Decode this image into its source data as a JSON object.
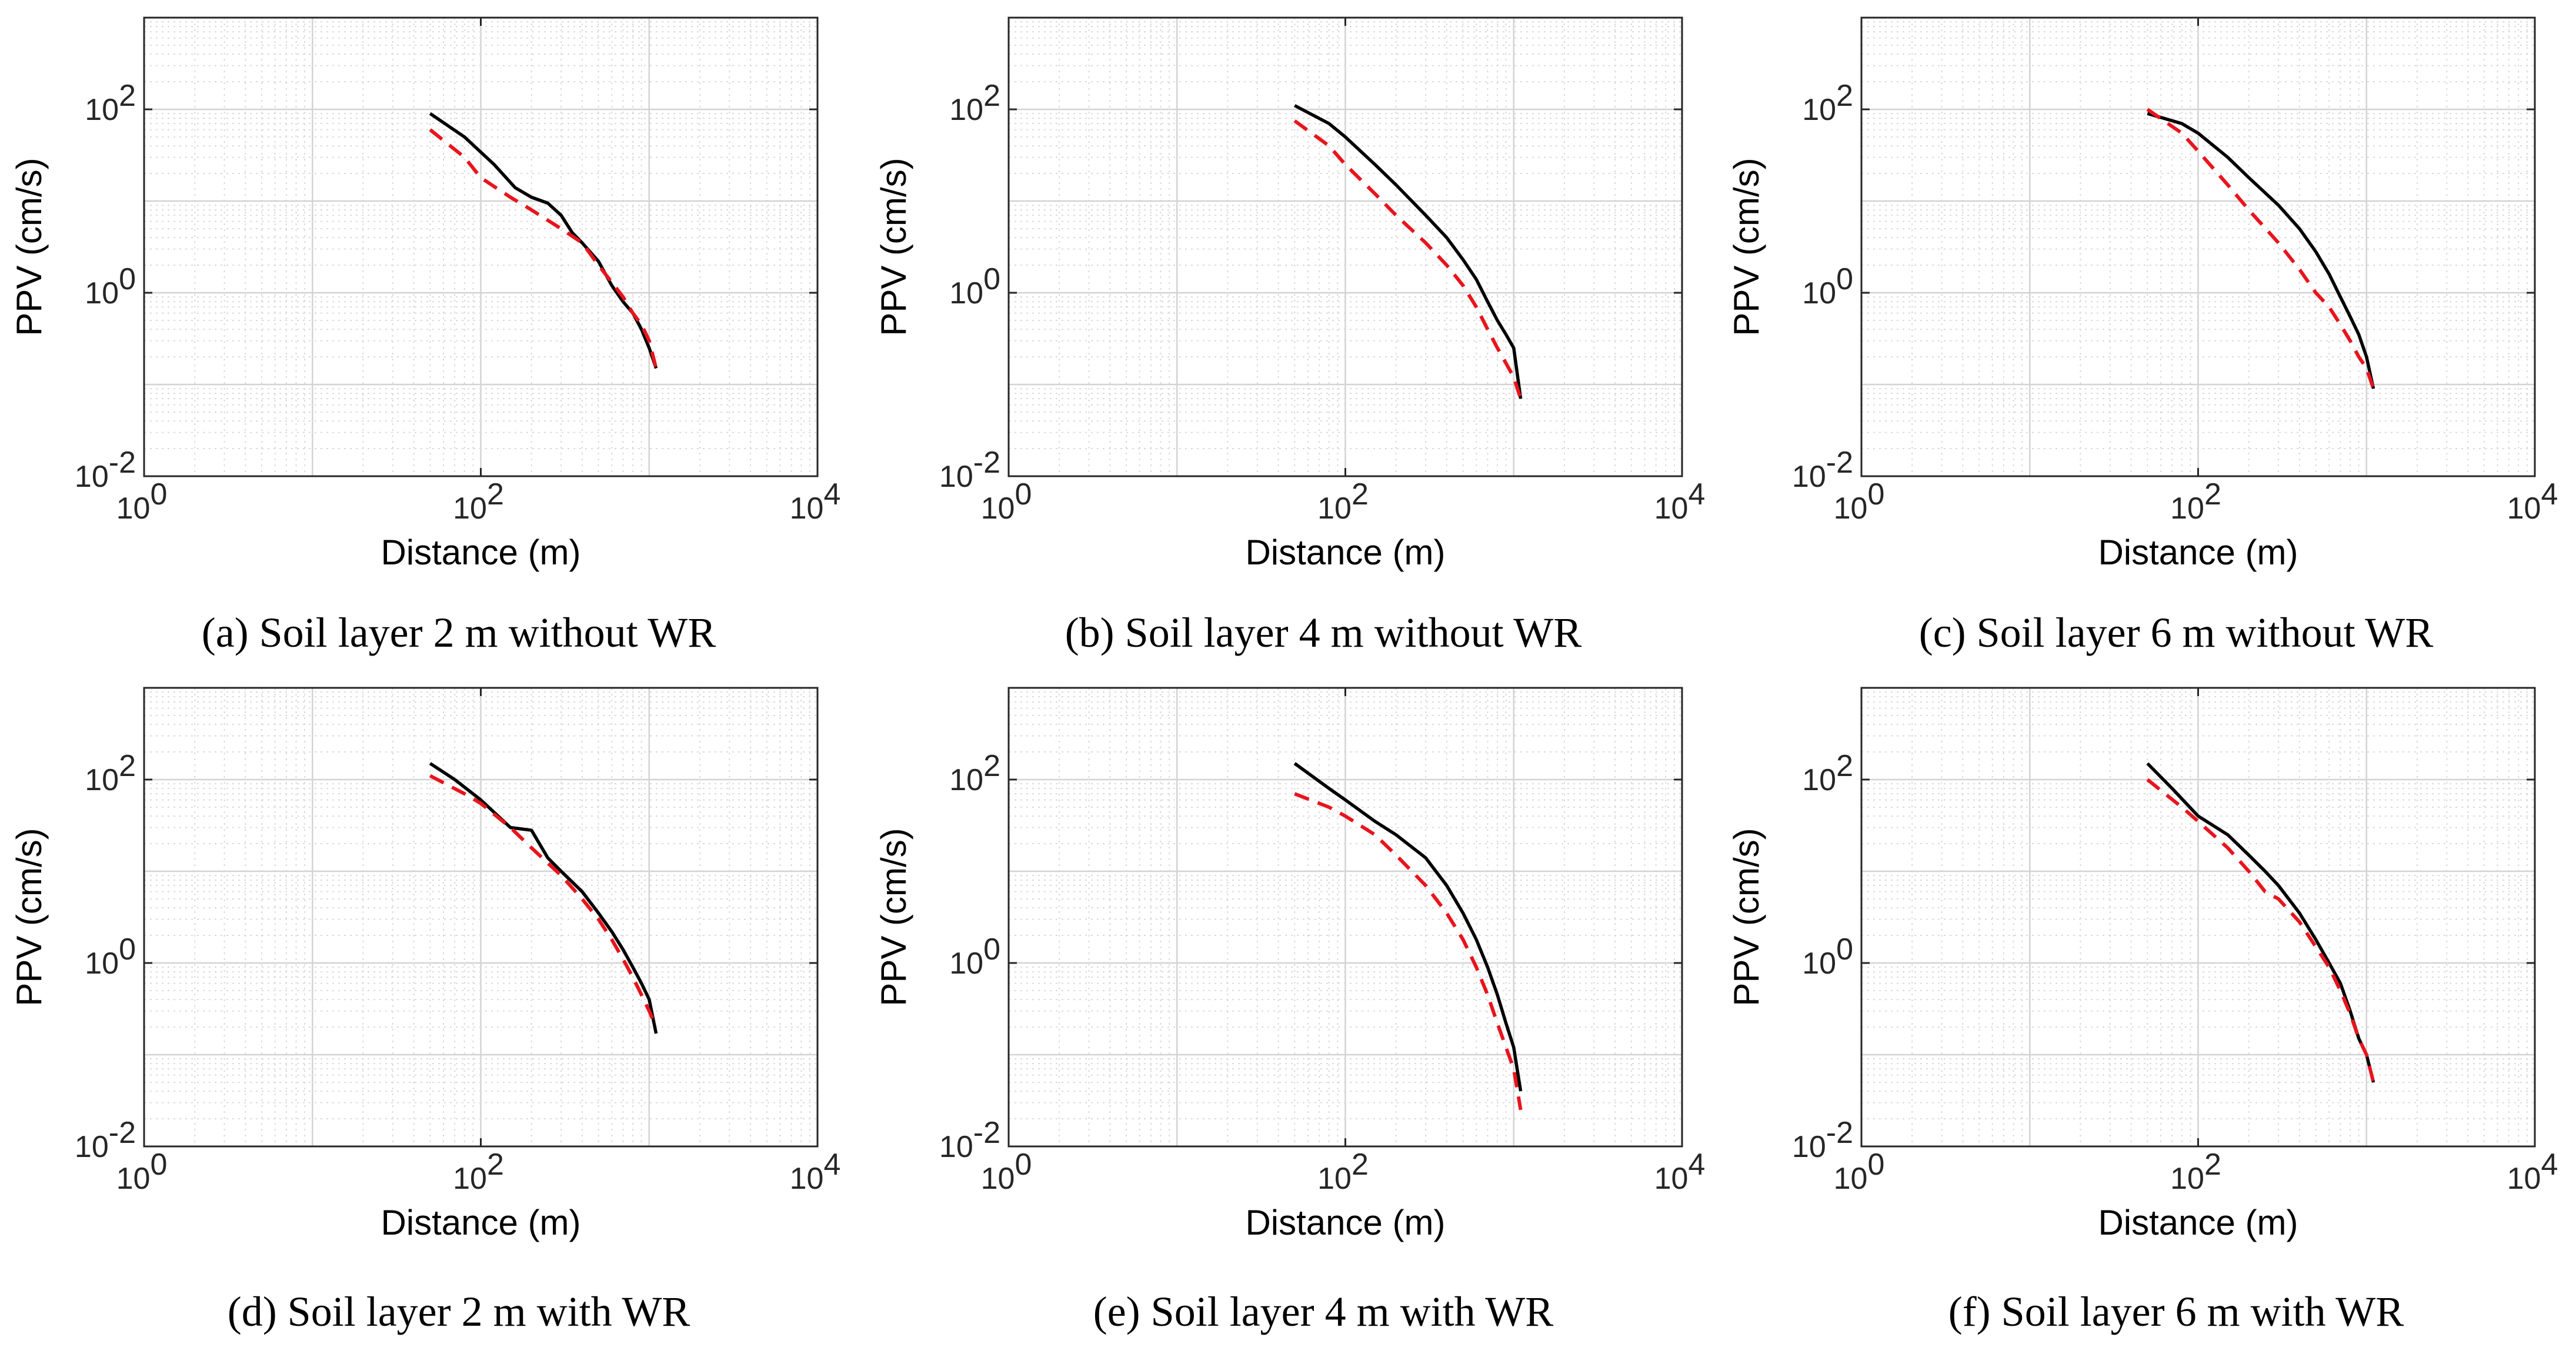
{
  "chart_data": [
    {
      "panel": "a",
      "type": "line",
      "caption": "Soil layer 2 m without WR",
      "xlabel": "Distance (m)",
      "ylabel": "PPV (cm/s)",
      "xscale": "log",
      "yscale": "log",
      "xlim": [
        1,
        10000
      ],
      "ylim": [
        0.01,
        1000
      ],
      "xticks": [
        "10^0",
        "10^2",
        "10^4"
      ],
      "yticks": [
        "10^-2",
        "10^0",
        "10^2"
      ],
      "grid": true,
      "series": [
        {
          "name": "solid",
          "color": "#000000",
          "style": "solid",
          "x": [
            50,
            80,
            120,
            160,
            200,
            250,
            300,
            350,
            400,
            500,
            600,
            700,
            800,
            900,
            1000,
            1100
          ],
          "y": [
            90,
            50,
            25,
            14,
            11,
            9.5,
            7,
            4.5,
            3.5,
            2.2,
            1.2,
            0.8,
            0.6,
            0.4,
            0.25,
            0.15
          ]
        },
        {
          "name": "dashed",
          "color": "#e8141c",
          "style": "dashed",
          "x": [
            50,
            80,
            100,
            150,
            200,
            300,
            400,
            500,
            600,
            700,
            800,
            900,
            1000,
            1100
          ],
          "y": [
            60,
            30,
            18,
            11,
            8,
            5,
            3.5,
            2,
            1.3,
            0.9,
            0.6,
            0.45,
            0.3,
            0.15
          ]
        }
      ]
    },
    {
      "panel": "b",
      "type": "line",
      "caption": "Soil layer 4 m without WR",
      "xlabel": "Distance (m)",
      "ylabel": "PPV (cm/s)",
      "xscale": "log",
      "yscale": "log",
      "xlim": [
        1,
        10000
      ],
      "ylim": [
        0.01,
        1000
      ],
      "xticks": [
        "10^0",
        "10^2",
        "10^4"
      ],
      "yticks": [
        "10^-2",
        "10^0",
        "10^2"
      ],
      "grid": true,
      "series": [
        {
          "name": "solid",
          "color": "#000000",
          "style": "solid",
          "x": [
            50,
            80,
            100,
            150,
            200,
            300,
            400,
            500,
            600,
            700,
            800,
            900,
            1000,
            1100
          ],
          "y": [
            110,
            70,
            50,
            25,
            15,
            7,
            4,
            2.3,
            1.4,
            0.8,
            0.5,
            0.35,
            0.25,
            0.07
          ]
        },
        {
          "name": "dashed",
          "color": "#e8141c",
          "style": "dashed",
          "x": [
            50,
            80,
            100,
            150,
            200,
            300,
            400,
            500,
            600,
            700,
            800,
            900,
            1000,
            1100
          ],
          "y": [
            75,
            40,
            25,
            12,
            7,
            3.5,
            2,
            1.2,
            0.7,
            0.4,
            0.25,
            0.17,
            0.12,
            0.07
          ]
        }
      ]
    },
    {
      "panel": "c",
      "type": "line",
      "caption": "Soil layer 6 m without WR",
      "xlabel": "Distance (m)",
      "ylabel": "PPV (cm/s)",
      "xscale": "log",
      "yscale": "log",
      "xlim": [
        1,
        10000
      ],
      "ylim": [
        0.01,
        1000
      ],
      "xticks": [
        "10^0",
        "10^2",
        "10^4"
      ],
      "yticks": [
        "10^-2",
        "10^0",
        "10^2"
      ],
      "grid": true,
      "series": [
        {
          "name": "solid",
          "color": "#000000",
          "style": "solid",
          "x": [
            50,
            80,
            100,
            150,
            200,
            300,
            400,
            500,
            600,
            700,
            800,
            900,
            1000,
            1100
          ],
          "y": [
            90,
            70,
            55,
            30,
            18,
            9,
            5,
            2.8,
            1.6,
            0.9,
            0.55,
            0.35,
            0.2,
            0.09
          ]
        },
        {
          "name": "dashed",
          "color": "#e8141c",
          "style": "dashed",
          "x": [
            50,
            80,
            100,
            150,
            200,
            300,
            400,
            500,
            600,
            700,
            800,
            900,
            1000,
            1100
          ],
          "y": [
            100,
            55,
            35,
            15,
            8,
            3.5,
            1.8,
            1.0,
            0.7,
            0.45,
            0.3,
            0.2,
            0.15,
            0.09
          ]
        }
      ]
    },
    {
      "panel": "d",
      "type": "line",
      "caption": "Soil layer 2 m with WR",
      "xlabel": "Distance (m)",
      "ylabel": "PPV (cm/s)",
      "xscale": "log",
      "yscale": "log",
      "xlim": [
        1,
        10000
      ],
      "ylim": [
        0.01,
        1000
      ],
      "xticks": [
        "10^0",
        "10^2",
        "10^4"
      ],
      "yticks": [
        "10^-2",
        "10^0",
        "10^2"
      ],
      "grid": true,
      "series": [
        {
          "name": "solid",
          "color": "#000000",
          "style": "solid",
          "x": [
            50,
            70,
            100,
            150,
            200,
            250,
            300,
            400,
            500,
            600,
            700,
            800,
            900,
            1000,
            1100
          ],
          "y": [
            150,
            100,
            60,
            30,
            28,
            14,
            10,
            6,
            3.5,
            2.2,
            1.4,
            0.9,
            0.6,
            0.4,
            0.17
          ]
        },
        {
          "name": "dashed",
          "color": "#e8141c",
          "style": "dashed",
          "x": [
            50,
            80,
            100,
            150,
            200,
            300,
            400,
            500,
            600,
            700,
            800,
            900,
            1000,
            1100
          ],
          "y": [
            110,
            70,
            55,
            30,
            18,
            9,
            5,
            3,
            1.8,
            1.1,
            0.7,
            0.45,
            0.3,
            0.2
          ]
        }
      ]
    },
    {
      "panel": "e",
      "type": "line",
      "caption": "Soil layer 4 m with WR",
      "xlabel": "Distance (m)",
      "ylabel": "PPV (cm/s)",
      "xscale": "log",
      "yscale": "log",
      "xlim": [
        1,
        10000
      ],
      "ylim": [
        0.01,
        1000
      ],
      "xticks": [
        "10^0",
        "10^2",
        "10^4"
      ],
      "yticks": [
        "10^-2",
        "10^0",
        "10^2"
      ],
      "grid": true,
      "series": [
        {
          "name": "solid",
          "color": "#000000",
          "style": "solid",
          "x": [
            50,
            80,
            100,
            150,
            200,
            300,
            400,
            500,
            600,
            700,
            800,
            900,
            1000,
            1100
          ],
          "y": [
            150,
            80,
            60,
            35,
            25,
            14,
            7,
            3.5,
            1.8,
            0.9,
            0.45,
            0.22,
            0.12,
            0.04
          ]
        },
        {
          "name": "dashed",
          "color": "#e8141c",
          "style": "dashed",
          "x": [
            50,
            80,
            100,
            150,
            200,
            300,
            400,
            500,
            600,
            700,
            800,
            900,
            1000,
            1100
          ],
          "y": [
            70,
            50,
            40,
            25,
            15,
            7,
            3.5,
            1.8,
            0.9,
            0.45,
            0.22,
            0.12,
            0.07,
            0.025
          ]
        }
      ]
    },
    {
      "panel": "f",
      "type": "line",
      "caption": "Soil layer 6 m with WR",
      "xlabel": "Distance (m)",
      "ylabel": "PPV (cm/s)",
      "xscale": "log",
      "yscale": "log",
      "xlim": [
        1,
        10000
      ],
      "ylim": [
        0.01,
        1000
      ],
      "xticks": [
        "10^0",
        "10^2",
        "10^4"
      ],
      "yticks": [
        "10^-2",
        "10^0",
        "10^2"
      ],
      "grid": true,
      "series": [
        {
          "name": "solid",
          "color": "#000000",
          "style": "solid",
          "x": [
            50,
            70,
            100,
            150,
            200,
            250,
            300,
            400,
            500,
            600,
            700,
            800,
            900,
            1000,
            1100
          ],
          "y": [
            150,
            80,
            40,
            25,
            15,
            10,
            7,
            3.5,
            1.8,
            1.0,
            0.6,
            0.3,
            0.15,
            0.1,
            0.05
          ]
        },
        {
          "name": "dashed",
          "color": "#e8141c",
          "style": "dashed",
          "x": [
            50,
            80,
            100,
            150,
            200,
            250,
            300,
            400,
            500,
            600,
            700,
            800,
            900,
            1000,
            1100
          ],
          "y": [
            100,
            50,
            35,
            18,
            10,
            6,
            5,
            2.8,
            1.5,
            0.9,
            0.5,
            0.28,
            0.15,
            0.1,
            0.05
          ]
        }
      ]
    }
  ]
}
